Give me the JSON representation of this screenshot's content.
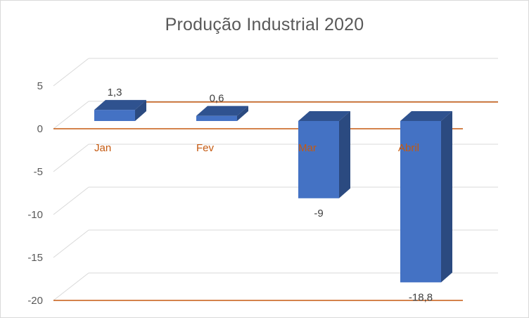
{
  "chart_data": {
    "type": "bar",
    "title": "Produção Industrial  2020",
    "categories": [
      "Jan",
      "Fev",
      "Mar",
      "Abril"
    ],
    "values": [
      1.3,
      0.6,
      -9,
      -18.8
    ],
    "data_labels": [
      "1,3",
      "0,6",
      "-9",
      "-18,8"
    ],
    "y_ticks": [
      5,
      0,
      -5,
      -10,
      -15,
      -20
    ],
    "y_tick_labels": [
      "5",
      "0",
      "-5",
      "-10",
      "-15",
      "-20"
    ],
    "ylim": [
      -20,
      5
    ],
    "xlabel": "",
    "ylabel": "",
    "grid": true,
    "legend": "none",
    "style": "3d-column",
    "colors": {
      "bar_front": "#4472c4",
      "bar_top": "#2f528f",
      "bar_side": "#2b4a80",
      "gridline": "#d9d9d9",
      "reference_line": "#c55a11",
      "category_label": "#c55a11",
      "axis_text": "#595959",
      "data_label": "#404040"
    }
  }
}
